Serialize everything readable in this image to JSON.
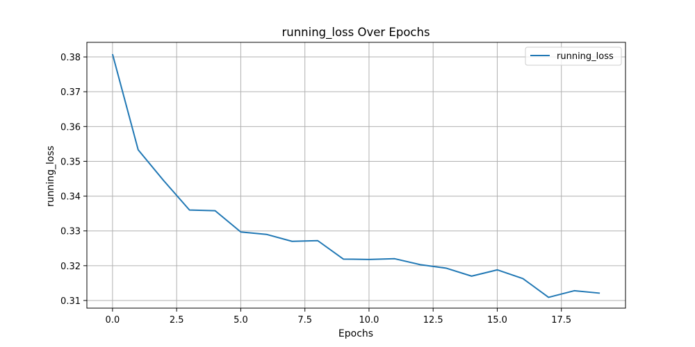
{
  "chart_data": {
    "type": "line",
    "title": "running_loss Over Epochs",
    "xlabel": "Epochs",
    "ylabel": "running_loss",
    "xlim": [
      -1.0,
      20.0
    ],
    "ylim": [
      0.3078,
      0.3842
    ],
    "xticks": [
      0.0,
      2.5,
      5.0,
      7.5,
      10.0,
      12.5,
      15.0,
      17.5
    ],
    "xtick_labels": [
      "0.0",
      "2.5",
      "5.0",
      "7.5",
      "10.0",
      "12.5",
      "15.0",
      "17.5"
    ],
    "yticks": [
      0.31,
      0.32,
      0.33,
      0.34,
      0.35,
      0.36,
      0.37,
      0.38
    ],
    "ytick_labels": [
      "0.31",
      "0.32",
      "0.33",
      "0.34",
      "0.35",
      "0.36",
      "0.37",
      "0.38"
    ],
    "grid": true,
    "legend_position": "top-right",
    "series": [
      {
        "name": "running_loss",
        "color": "#1f77b4",
        "x": [
          0,
          1,
          2,
          3,
          4,
          5,
          6,
          7,
          8,
          9,
          10,
          11,
          12,
          13,
          14,
          15,
          16,
          17,
          18,
          19
        ],
        "y": [
          0.3808,
          0.3533,
          0.3444,
          0.336,
          0.3358,
          0.3297,
          0.329,
          0.327,
          0.3272,
          0.3219,
          0.3218,
          0.322,
          0.3203,
          0.3193,
          0.317,
          0.3188,
          0.3163,
          0.3109,
          0.3128,
          0.3121
        ]
      }
    ]
  }
}
